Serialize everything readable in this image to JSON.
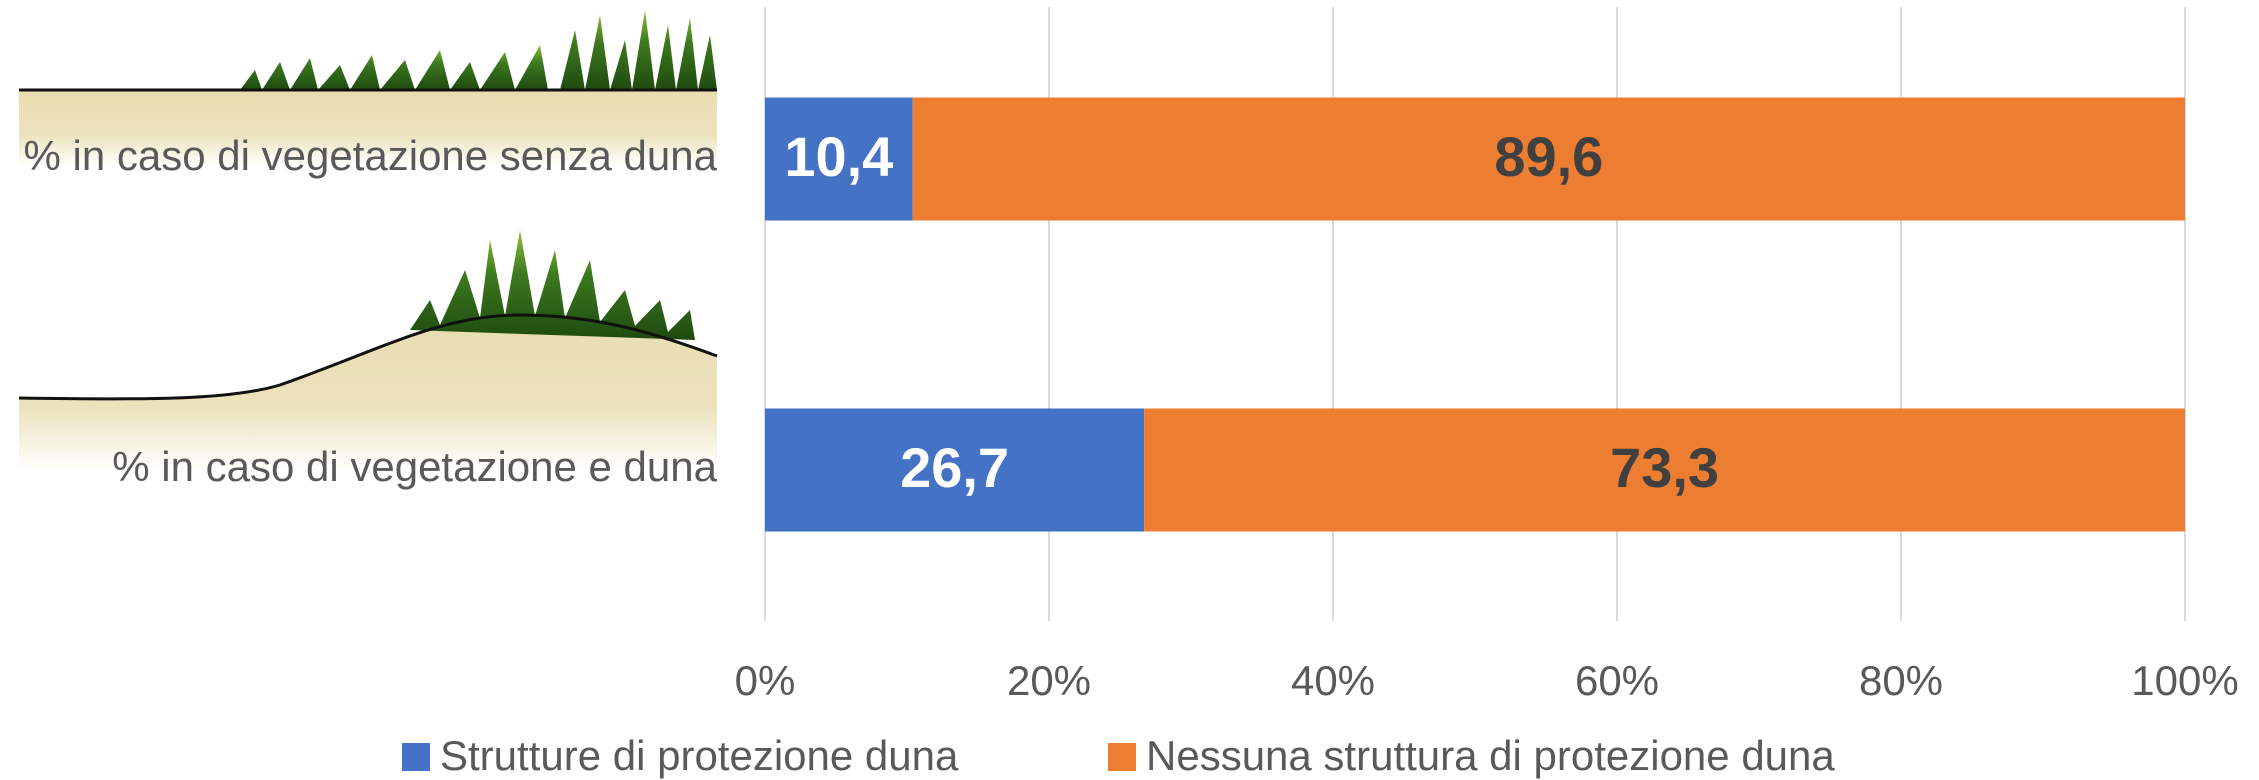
{
  "chart_data": {
    "type": "stacked-bar-horizontal",
    "categories": [
      "% in caso di vegetazione senza duna",
      "% in caso di vegetazione e duna"
    ],
    "series": [
      {
        "name": "Strutture di protezione duna",
        "color": "#4472c4",
        "values": [
          10.4,
          26.7
        ],
        "value_labels": [
          "10,4",
          "26,7"
        ]
      },
      {
        "name": "Nessuna struttura di protezione duna",
        "color": "#ed7d31",
        "values": [
          89.6,
          73.3
        ],
        "value_labels": [
          "89,6",
          "73,3"
        ]
      }
    ],
    "xlim": [
      0,
      100
    ],
    "xticks": [
      {
        "value": 0,
        "label": "0%"
      },
      {
        "value": 20,
        "label": "20%"
      },
      {
        "value": 40,
        "label": "40%"
      },
      {
        "value": 60,
        "label": "60%"
      },
      {
        "value": 80,
        "label": "80%"
      },
      {
        "value": 100,
        "label": "100%"
      }
    ],
    "grid": true,
    "legend": "bottom"
  }
}
